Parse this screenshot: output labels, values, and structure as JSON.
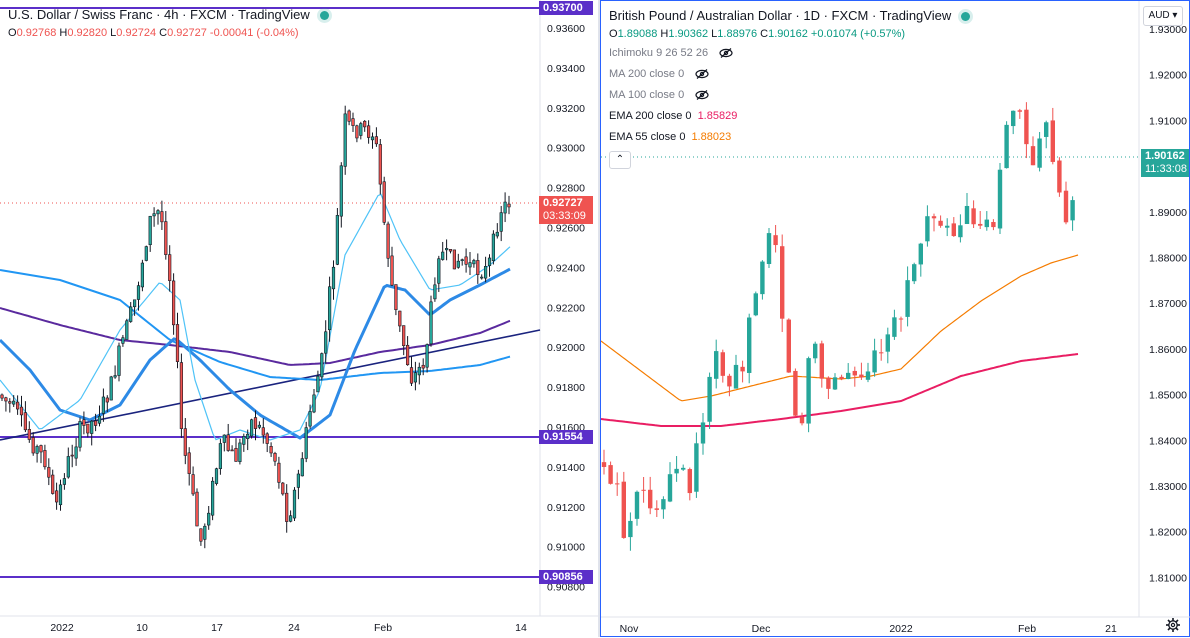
{
  "left_chart": {
    "title": "U.S. Dollar / Swiss Franc · 4h · FXCM · TradingView",
    "ohlc": {
      "o_label": "O",
      "o": "0.92768",
      "h_label": "H",
      "h": "0.92820",
      "l_label": "L",
      "l": "0.92724",
      "c_label": "C",
      "c": "0.92727",
      "change": "-0.00041 (-0.04%)"
    },
    "price_axis": [
      "0.93600",
      "0.93400",
      "0.93200",
      "0.93000",
      "0.92800",
      "0.92600",
      "0.92400",
      "0.92200",
      "0.92000",
      "0.91800",
      "0.91600",
      "0.91400",
      "0.91200",
      "0.91000",
      "0.90800"
    ],
    "time_axis": [
      "2022",
      "10",
      "17",
      "24",
      "Feb",
      "14"
    ],
    "tags": {
      "top": "0.93700",
      "current": "0.92727",
      "countdown": "03:33:09",
      "mid": "0.91554",
      "bottom": "0.90856"
    },
    "colors": {
      "up": "#26a69a",
      "down": "#ef5350",
      "candles": "#131722",
      "hline": "#5b2fc9",
      "trend": "#1a237e",
      "ma_thick": "#2d8ae6",
      "ma_purple": "#5a2a9e",
      "ma_blue": "#2196f3",
      "ma_cyan": "#4fc3f7",
      "current": "#ef5350"
    }
  },
  "right_chart": {
    "title": "British Pound / Australian Dollar · 1D · FXCM · TradingView",
    "currency": "AUD",
    "ohlc": {
      "o_label": "O",
      "o": "1.89088",
      "h_label": "H",
      "h": "1.90362",
      "l_label": "L",
      "l": "1.88976",
      "c_label": "C",
      "c": "1.90162",
      "change": "+0.01074 (+0.57%)"
    },
    "indicators": [
      {
        "label": "Ichimoku 9 26 52 26",
        "value": "",
        "hidden": true,
        "color": "#787b86"
      },
      {
        "label": "MA 200 close 0",
        "value": "",
        "hidden": true,
        "color": "#787b86"
      },
      {
        "label": "MA 100 close 0",
        "value": "",
        "hidden": true,
        "color": "#787b86"
      },
      {
        "label": "EMA 200 close 0",
        "value": "1.85829",
        "hidden": false,
        "color": "#e91e63"
      },
      {
        "label": "EMA 55 close 0",
        "value": "1.88023",
        "hidden": false,
        "color": "#f57c00"
      }
    ],
    "price_axis": [
      "1.93000",
      "1.92000",
      "1.91000",
      "1.90000",
      "1.89000",
      "1.88000",
      "1.87000",
      "1.86000",
      "1.85000",
      "1.84000",
      "1.83000",
      "1.82000",
      "1.81000"
    ],
    "time_axis": [
      "Nov",
      "Dec",
      "2022",
      "Feb",
      "21"
    ],
    "tags": {
      "current": "1.90162",
      "countdown": "11:33:08"
    },
    "colors": {
      "up": "#26a69a",
      "down": "#ef5350",
      "ema200": "#e91e63",
      "ema55": "#f57c00"
    }
  }
}
